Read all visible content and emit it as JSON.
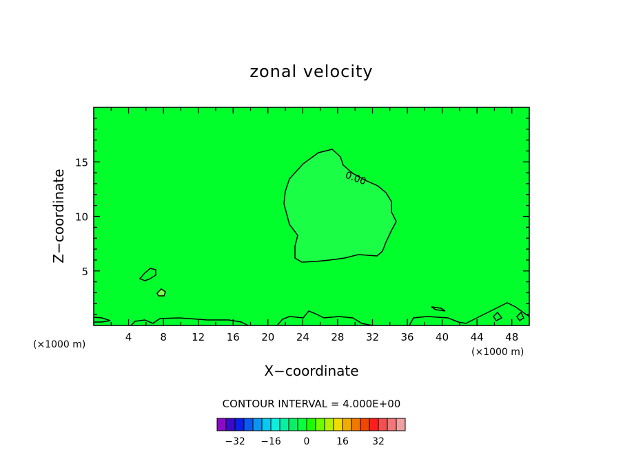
{
  "chart_data": {
    "type": "contour",
    "title": "zonal velocity",
    "xlabel": "X−coordinate",
    "ylabel": "Z−coordinate",
    "x_unit_left": "(×1000 m)",
    "x_unit_right": "(×1000 m)",
    "xlim": [
      0,
      50
    ],
    "ylim": [
      0,
      20
    ],
    "x_ticks": [
      4,
      8,
      12,
      16,
      20,
      24,
      28,
      32,
      36,
      40,
      44,
      48
    ],
    "x_tick_labels": [
      "4",
      "8",
      "12",
      "16",
      "20",
      "24",
      "28",
      "32",
      "36",
      "40",
      "44",
      "48"
    ],
    "y_ticks": [
      5,
      10,
      15
    ],
    "y_tick_labels": [
      "5",
      "10",
      "15"
    ],
    "contour_interval_text": "CONTOUR INTERVAL = 4.000E+00",
    "contour_label": "0.00",
    "background_color": "#00ff2b",
    "anomaly_color": "#1aff45",
    "colorbar": {
      "colors": [
        "#8a0ac8",
        "#3a0ac8",
        "#0a1ee6",
        "#0a5af0",
        "#0a96f0",
        "#0ac8f0",
        "#0af0dc",
        "#0af0a0",
        "#0af064",
        "#0aff3c",
        "#1aff00",
        "#6eff00",
        "#b4f000",
        "#f0dc00",
        "#f0aa00",
        "#f07800",
        "#f04600",
        "#ff1e1e",
        "#f05050",
        "#f07878",
        "#f0a0a0"
      ],
      "tick_values": [
        -32,
        -16,
        0,
        16,
        32
      ],
      "tick_labels": [
        "−32",
        "−16",
        "0",
        "16",
        "32"
      ]
    }
  }
}
